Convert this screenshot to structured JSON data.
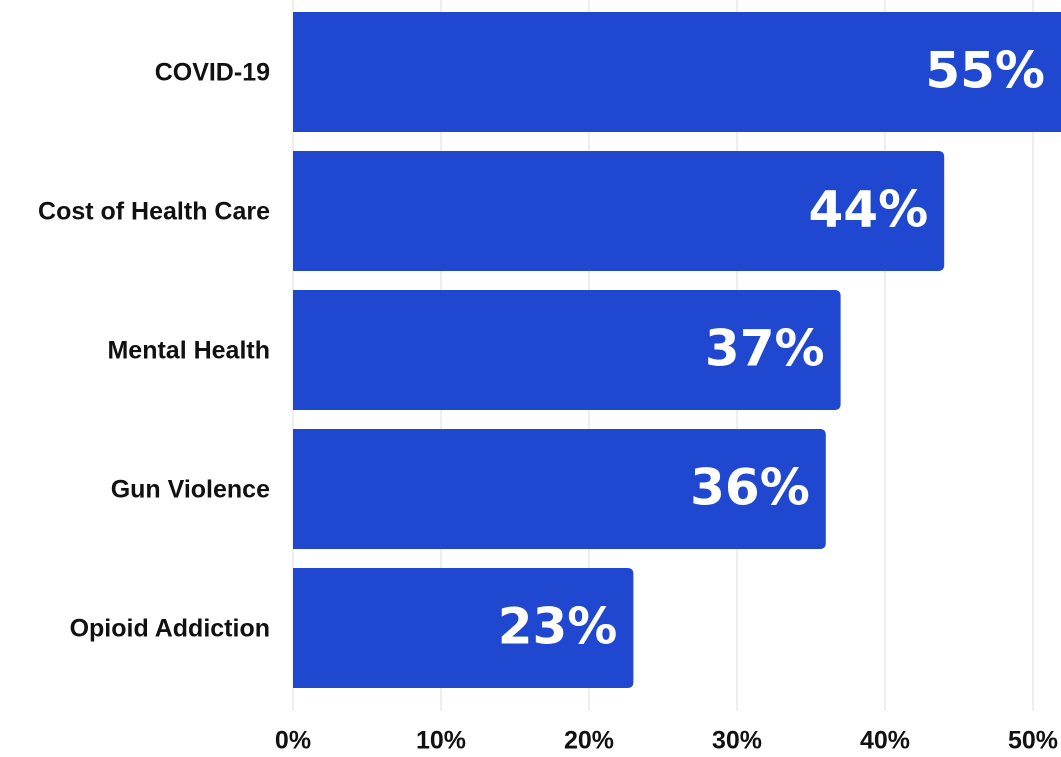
{
  "chart_data": {
    "type": "bar",
    "orientation": "horizontal",
    "categories": [
      "COVID-19",
      "Cost of Health Care",
      "Mental Health",
      "Gun Violence",
      "Opioid Addiction"
    ],
    "values": [
      55,
      44,
      37,
      36,
      23
    ],
    "value_labels": [
      "55%",
      "44%",
      "37%",
      "36%",
      "23%"
    ],
    "color": "#1f47cf",
    "xlim": [
      0,
      50
    ],
    "xticks": [
      {
        "value": 0,
        "label": "0%"
      },
      {
        "value": 10,
        "label": "10%"
      },
      {
        "value": 20,
        "label": "20%"
      },
      {
        "value": 30,
        "label": "30%"
      },
      {
        "value": 40,
        "label": "40%"
      },
      {
        "value": 50,
        "label": "50%"
      }
    ],
    "grid": true
  }
}
